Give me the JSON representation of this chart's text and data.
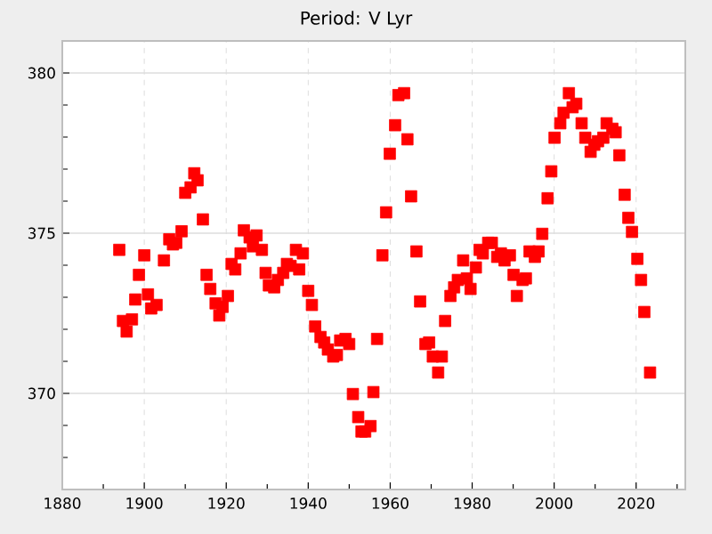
{
  "chart_data": {
    "type": "scatter",
    "title": "Period: V Lyr",
    "marker": "square",
    "grid": true,
    "legend": false,
    "xlim": [
      1880,
      2032
    ],
    "ylim": [
      367,
      381
    ],
    "xticks": [
      1880,
      {
        "value": 1890,
        "label": null
      },
      1900,
      {
        "value": 1910,
        "label": null
      },
      1920,
      {
        "value": 1930,
        "label": null
      },
      1940,
      {
        "value": 1950,
        "label": null
      },
      1960,
      {
        "value": 1970,
        "label": null
      },
      1980,
      {
        "value": 1990,
        "label": null
      },
      2000,
      {
        "value": 2010,
        "label": null
      },
      2020,
      {
        "value": 2030,
        "label": null
      }
    ],
    "yticks": [
      {
        "value": 368,
        "label": null
      },
      {
        "value": 369,
        "label": null
      },
      370,
      {
        "value": 371,
        "label": null
      },
      {
        "value": 372,
        "label": null
      },
      {
        "value": 373,
        "label": null
      },
      {
        "value": 374,
        "label": null
      },
      375,
      {
        "value": 376,
        "label": null
      },
      {
        "value": 377,
        "label": null
      },
      {
        "value": 378,
        "label": null
      },
      {
        "value": 379,
        "label": null
      },
      380
    ],
    "series": [
      {
        "color": "#ff0000",
        "x": [
          1893.9,
          1894.8,
          1895.7,
          1897.0,
          1897.8,
          1898.7,
          1900.0,
          1900.9,
          1901.7,
          1903.0,
          1904.8,
          1906.1,
          1907.0,
          1907.8,
          1909.1,
          1910.0,
          1911.3,
          1912.2,
          1913.0,
          1914.3,
          1915.2,
          1916.1,
          1917.4,
          1918.3,
          1919.1,
          1920.4,
          1921.3,
          1922.2,
          1923.5,
          1924.3,
          1925.7,
          1926.5,
          1927.4,
          1928.7,
          1929.6,
          1930.4,
          1931.7,
          1932.6,
          1933.9,
          1934.8,
          1935.7,
          1937.0,
          1937.8,
          1938.7,
          1940.0,
          1940.9,
          1941.7,
          1943.0,
          1943.9,
          1944.8,
          1946.1,
          1947.0,
          1947.8,
          1949.1,
          1950.0,
          1950.9,
          1952.2,
          1953.0,
          1953.9,
          1955.2,
          1955.9,
          1956.8,
          1958.1,
          1959.0,
          1959.9,
          1961.2,
          1962.0,
          1963.4,
          1964.2,
          1965.1,
          1966.4,
          1967.3,
          1968.6,
          1969.5,
          1970.4,
          1971.7,
          1972.6,
          1973.4,
          1974.7,
          1975.6,
          1976.5,
          1977.8,
          1978.7,
          1979.6,
          1980.9,
          1981.8,
          1982.6,
          1983.9,
          1984.8,
          1986.1,
          1987.0,
          1987.9,
          1989.2,
          1990.1,
          1990.9,
          1992.3,
          1993.1,
          1994.0,
          1995.3,
          1996.2,
          1997.1,
          1998.4,
          1999.3,
          2000.1,
          2001.5,
          2002.3,
          2003.6,
          2004.5,
          2005.4,
          2006.7,
          2007.6,
          2008.9,
          2009.8,
          2010.7,
          2012.0,
          2012.8,
          2014.2,
          2015.0,
          2015.9,
          2017.2,
          2018.1,
          2019.0,
          2020.3,
          2021.2,
          2022.0,
          2023.4
        ],
        "values": [
          374.48,
          372.26,
          371.93,
          372.31,
          372.93,
          373.7,
          374.31,
          373.09,
          372.65,
          372.76,
          374.15,
          374.81,
          374.65,
          374.7,
          375.06,
          376.26,
          376.43,
          376.87,
          376.65,
          375.43,
          373.7,
          373.26,
          372.81,
          372.43,
          372.7,
          373.04,
          374.04,
          373.87,
          374.37,
          375.09,
          374.87,
          374.59,
          374.93,
          374.48,
          373.76,
          373.37,
          373.31,
          373.54,
          373.76,
          374.04,
          373.98,
          374.48,
          373.87,
          374.37,
          373.2,
          372.76,
          372.09,
          371.76,
          371.59,
          371.37,
          371.15,
          371.2,
          371.65,
          371.7,
          371.54,
          369.98,
          369.26,
          368.81,
          368.81,
          368.98,
          370.04,
          371.7,
          374.31,
          375.65,
          377.48,
          378.37,
          379.31,
          379.37,
          377.93,
          376.15,
          374.43,
          372.87,
          371.54,
          371.59,
          371.15,
          370.65,
          371.15,
          372.26,
          373.04,
          373.31,
          373.54,
          374.15,
          373.59,
          373.26,
          373.93,
          374.48,
          374.37,
          374.7,
          374.7,
          374.26,
          374.37,
          374.15,
          374.31,
          373.7,
          373.04,
          373.54,
          373.59,
          374.43,
          374.26,
          374.43,
          374.98,
          376.09,
          376.93,
          377.98,
          378.43,
          378.76,
          379.37,
          378.93,
          379.04,
          378.43,
          377.98,
          377.54,
          377.76,
          377.87,
          377.98,
          378.43,
          378.26,
          378.15,
          377.43,
          376.2,
          375.48,
          375.04,
          374.2,
          373.54,
          372.54,
          370.65
        ]
      }
    ]
  }
}
